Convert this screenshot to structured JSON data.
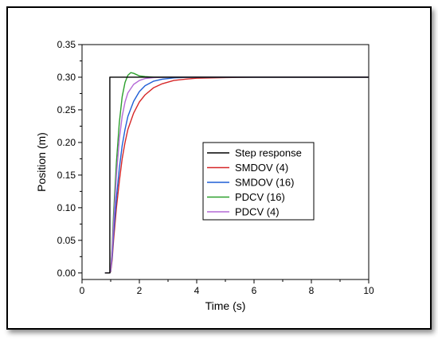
{
  "chart_data": {
    "type": "line",
    "xlabel": "Time (s)",
    "ylabel": "Position (m)",
    "xlim": [
      0,
      10
    ],
    "ylim": [
      -0.01,
      0.35
    ],
    "xticks": [
      0,
      2,
      4,
      6,
      8,
      10
    ],
    "xtick_labels": [
      "0",
      "2",
      "4",
      "6",
      "8",
      "10"
    ],
    "yticks": [
      0.0,
      0.05,
      0.1,
      0.15,
      0.2,
      0.25,
      0.3,
      0.35
    ],
    "ytick_labels": [
      "0.00",
      "0.05",
      "0.10",
      "0.15",
      "0.20",
      "0.25",
      "0.30",
      "0.35"
    ],
    "grid": false,
    "legend_position": "center-right",
    "series": [
      {
        "name": "Step response",
        "color": "#000000",
        "x": [
          0.8,
          0.97,
          0.97,
          10
        ],
        "y": [
          0.0,
          0.0,
          0.3,
          0.3
        ]
      },
      {
        "name": "SMDOV (4)",
        "color": "#d62728",
        "x": [
          0.8,
          0.97,
          1.0,
          1.05,
          1.1,
          1.2,
          1.3,
          1.4,
          1.5,
          1.6,
          1.8,
          2.0,
          2.2,
          2.5,
          2.8,
          3.2,
          3.6,
          4.0,
          5.0,
          6.0,
          10
        ],
        "y": [
          0.0,
          0.0,
          0.002,
          0.02,
          0.05,
          0.1,
          0.14,
          0.175,
          0.2,
          0.22,
          0.245,
          0.262,
          0.273,
          0.284,
          0.29,
          0.295,
          0.297,
          0.2985,
          0.2995,
          0.3,
          0.3
        ]
      },
      {
        "name": "SMDOV (16)",
        "color": "#1f5fd6",
        "x": [
          0.8,
          0.97,
          1.0,
          1.05,
          1.1,
          1.2,
          1.3,
          1.4,
          1.5,
          1.6,
          1.8,
          2.0,
          2.2,
          2.5,
          2.8,
          3.2,
          3.6,
          4.0,
          5.0,
          10
        ],
        "y": [
          0.0,
          0.0,
          0.003,
          0.025,
          0.06,
          0.115,
          0.16,
          0.195,
          0.22,
          0.24,
          0.263,
          0.278,
          0.287,
          0.294,
          0.297,
          0.299,
          0.2997,
          0.3,
          0.3,
          0.3
        ]
      },
      {
        "name": "PDCV (16)",
        "color": "#2ca02c",
        "x": [
          0.8,
          0.97,
          1.0,
          1.05,
          1.1,
          1.2,
          1.3,
          1.4,
          1.5,
          1.6,
          1.7,
          1.8,
          1.9,
          2.0,
          2.2,
          2.5,
          3.0,
          4.0,
          10
        ],
        "y": [
          0.0,
          0.0,
          0.004,
          0.04,
          0.09,
          0.17,
          0.23,
          0.27,
          0.292,
          0.303,
          0.307,
          0.306,
          0.304,
          0.302,
          0.301,
          0.3,
          0.3,
          0.3,
          0.3
        ]
      },
      {
        "name": "PDCV (4)",
        "color": "#b469d6",
        "x": [
          0.8,
          0.97,
          1.0,
          1.05,
          1.1,
          1.2,
          1.3,
          1.4,
          1.5,
          1.6,
          1.8,
          2.0,
          2.2,
          2.5,
          3.0,
          4.0,
          10
        ],
        "y": [
          0.0,
          0.0,
          0.004,
          0.035,
          0.075,
          0.15,
          0.205,
          0.24,
          0.262,
          0.276,
          0.289,
          0.295,
          0.298,
          0.2995,
          0.3,
          0.3,
          0.3
        ]
      }
    ]
  }
}
